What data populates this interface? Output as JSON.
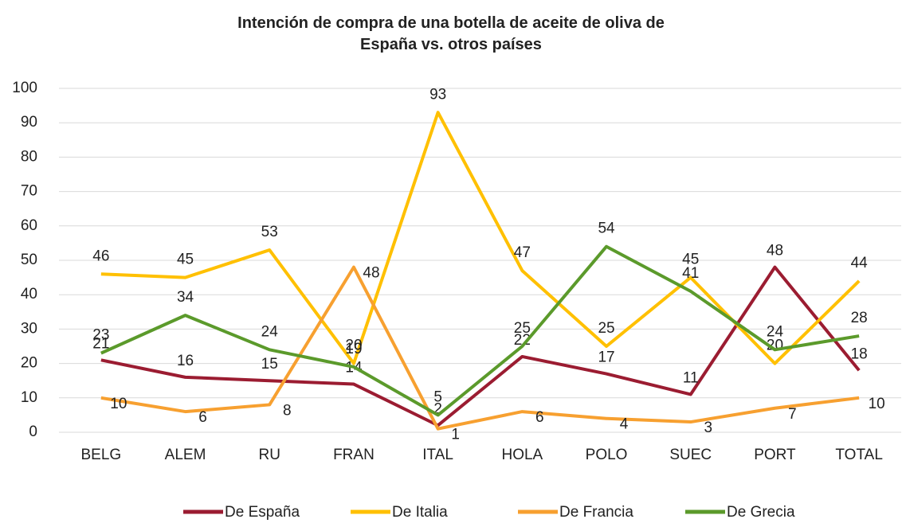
{
  "chart_data": {
    "type": "line",
    "title": "Intención de compra de una botella de aceite de oliva de España vs. otros países",
    "categories": [
      "BELG",
      "ALEM",
      "RU",
      "FRAN",
      "ITAL",
      "HOLA",
      "POLO",
      "SUEC",
      "PORT",
      "TOTAL"
    ],
    "series": [
      {
        "name": "De España",
        "color": "#9b1c31",
        "values": [
          21,
          16,
          15,
          14,
          2,
          22,
          17,
          11,
          48,
          18
        ]
      },
      {
        "name": "De Italia",
        "color": "#ffc000",
        "values": [
          46,
          45,
          53,
          20,
          93,
          47,
          25,
          45,
          20,
          44
        ]
      },
      {
        "name": "De Francia",
        "color": "#f7a030",
        "values": [
          10,
          6,
          8,
          48,
          1,
          6,
          4,
          3,
          7,
          10
        ]
      },
      {
        "name": "De Grecia",
        "color": "#5b9a2b",
        "values": [
          23,
          34,
          24,
          19,
          5,
          25,
          54,
          41,
          24,
          28
        ]
      }
    ],
    "ylim": [
      0,
      100
    ],
    "yticks": [
      0,
      10,
      20,
      30,
      40,
      50,
      60,
      70,
      80,
      90,
      100
    ],
    "grid": true,
    "legend": "bottom"
  }
}
